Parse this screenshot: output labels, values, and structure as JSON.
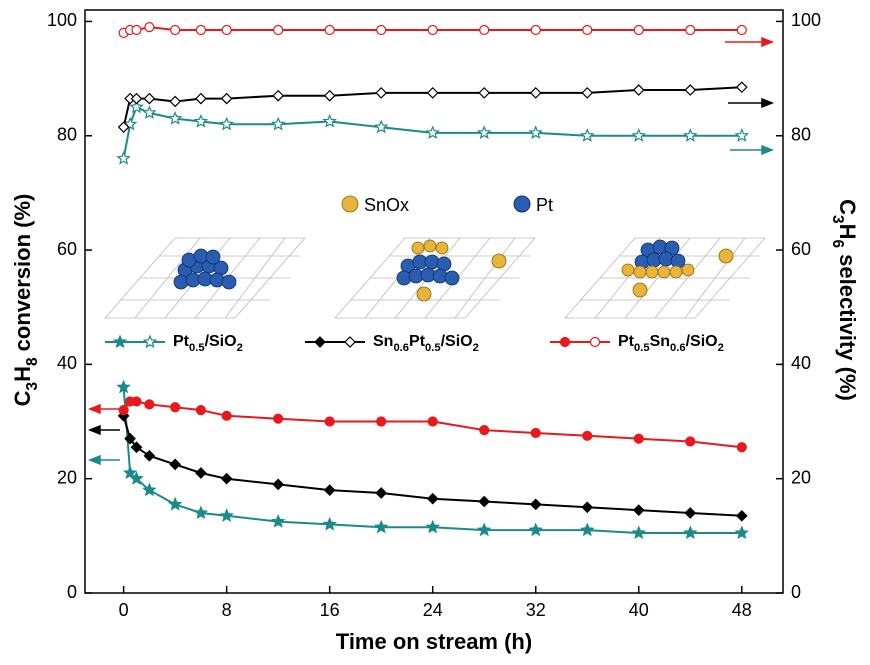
{
  "chart_data": {
    "type": "line",
    "x_label": "Time on stream (h)",
    "y_label": "C3H8 conversion (%)",
    "y2_label": "C3H6 selectivity (%)",
    "annotations": [
      "SnOx",
      "Pt"
    ],
    "x": [
      0,
      0.5,
      1,
      2,
      4,
      6,
      8,
      12,
      16,
      20,
      24,
      28,
      32,
      36,
      40,
      44,
      48
    ],
    "xlim": [
      -3,
      51.2
    ],
    "xticks": [
      0,
      8,
      16,
      24,
      32,
      40,
      48
    ],
    "ylim": [
      0,
      102
    ],
    "yticks": [
      0,
      20,
      40,
      60,
      80,
      100
    ],
    "y2lim": [
      0,
      102
    ],
    "y2ticks": [
      0,
      20,
      40,
      60,
      80,
      100
    ],
    "series": [
      {
        "name": "Pt0.5/SiO2",
        "color": "#1a8a8a",
        "marker": "star",
        "values": [
          36,
          21,
          20,
          18,
          15.5,
          14,
          13.5,
          12.5,
          12,
          11.5,
          11.5,
          11,
          11,
          11,
          10.5,
          10.5,
          10.5
        ]
      },
      {
        "name": "Sn0.6Pt0.5/SiO2",
        "color": "#000000",
        "marker": "diamond",
        "values": [
          31,
          27,
          25.5,
          24,
          22.5,
          21,
          20,
          19,
          18,
          17.5,
          16.5,
          16,
          15.5,
          15,
          14.5,
          14,
          13.5
        ]
      },
      {
        "name": "Pt0.5Sn0.6/SiO2",
        "color": "#e8191c",
        "marker": "circle",
        "values": [
          32,
          33.5,
          33.5,
          33,
          32.5,
          32,
          31,
          30.5,
          30,
          30,
          30,
          28.5,
          28,
          27.5,
          27,
          26.5,
          25.5
        ]
      }
    ],
    "series_y2": [
      {
        "color": "#1a8a8a",
        "marker": "star",
        "axis": "y2",
        "values": [
          76,
          82,
          85,
          84,
          83,
          82.5,
          82,
          82,
          82.5,
          81.5,
          80.5,
          80.5,
          80.5,
          80,
          80,
          80,
          80
        ]
      },
      {
        "color": "#000000",
        "marker": "diamond",
        "axis": "y2",
        "values": [
          81.5,
          86.5,
          86.5,
          86.5,
          86,
          86.5,
          86.5,
          87,
          87,
          87.5,
          87.5,
          87.5,
          87.5,
          87.5,
          88,
          88,
          88.5
        ]
      },
      {
        "color": "#e8191c",
        "marker": "circle",
        "axis": "y2",
        "values": [
          98,
          98.5,
          98.5,
          99,
          98.5,
          98.5,
          98.5,
          98.5,
          98.5,
          98.5,
          98.5,
          98.5,
          98.5,
          98.5,
          98.5,
          98.5,
          98.5
        ]
      }
    ]
  }
}
